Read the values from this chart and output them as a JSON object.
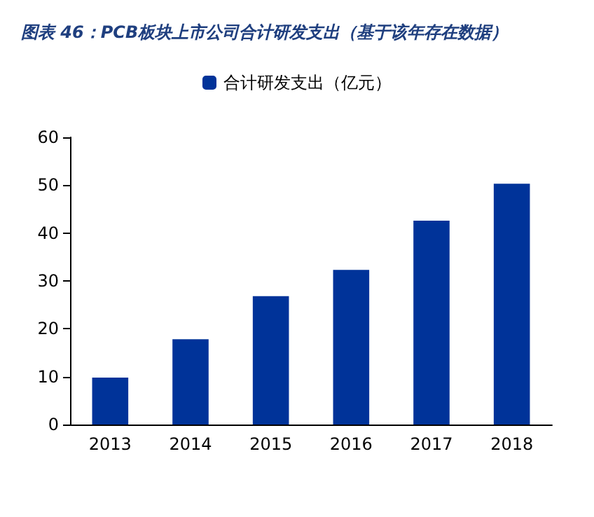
{
  "chart_data": {
    "type": "bar",
    "title": "图表 46：PCB板块上市公司合计研发支出（基于该年存在数据）",
    "categories": [
      "2013",
      "2014",
      "2015",
      "2016",
      "2017",
      "2018"
    ],
    "series": [
      {
        "name": "合计研发支出（亿元）",
        "color": "#003399",
        "values": [
          9.8,
          17.8,
          26.8,
          32.3,
          42.6,
          50.3
        ]
      }
    ],
    "ylim": [
      0,
      60
    ],
    "yticks": [
      0,
      10,
      20,
      30,
      40,
      50,
      60
    ],
    "grid": false,
    "legend": "top"
  }
}
